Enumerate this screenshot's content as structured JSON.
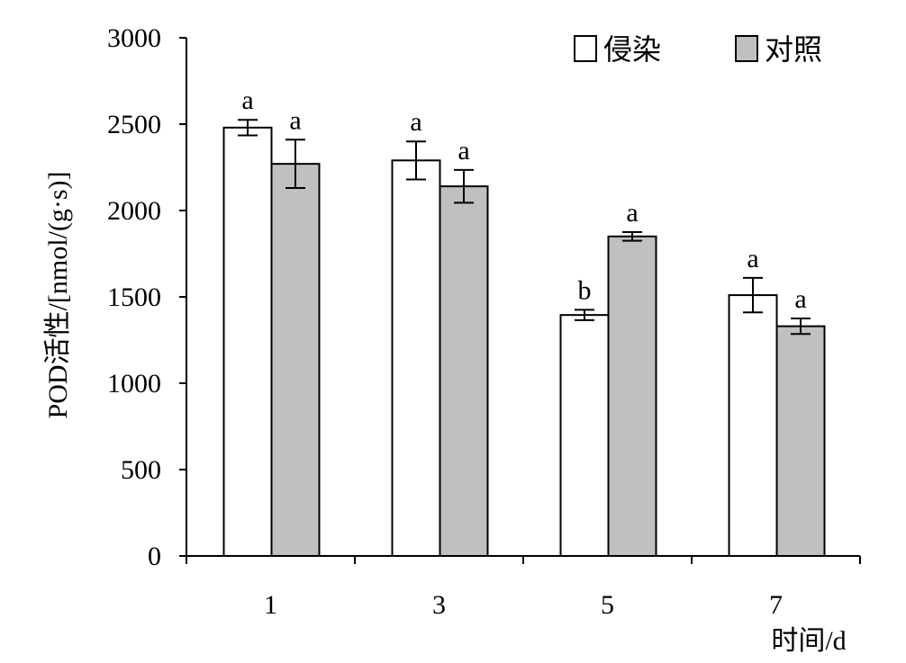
{
  "chart_data": {
    "type": "bar",
    "title": "",
    "xlabel": "时间/d",
    "ylabel": "POD活性/[nmol/(g·s)]",
    "ylim": [
      0,
      3000
    ],
    "yticks": [
      0,
      500,
      1000,
      1500,
      2000,
      2500,
      3000
    ],
    "categories": [
      "1",
      "3",
      "5",
      "7"
    ],
    "legend_position": "top-right",
    "series": [
      {
        "name": "侵染",
        "color": "#ffffff",
        "values": [
          2480,
          2290,
          1395,
          1510
        ],
        "errors": [
          45,
          110,
          30,
          100
        ],
        "labels": [
          "a",
          "a",
          "b",
          "a"
        ]
      },
      {
        "name": "对照",
        "color": "#c0c0c0",
        "values": [
          2270,
          2140,
          1850,
          1330
        ],
        "errors": [
          140,
          95,
          25,
          45
        ],
        "labels": [
          "a",
          "a",
          "a",
          "a"
        ]
      }
    ],
    "grid": false
  }
}
